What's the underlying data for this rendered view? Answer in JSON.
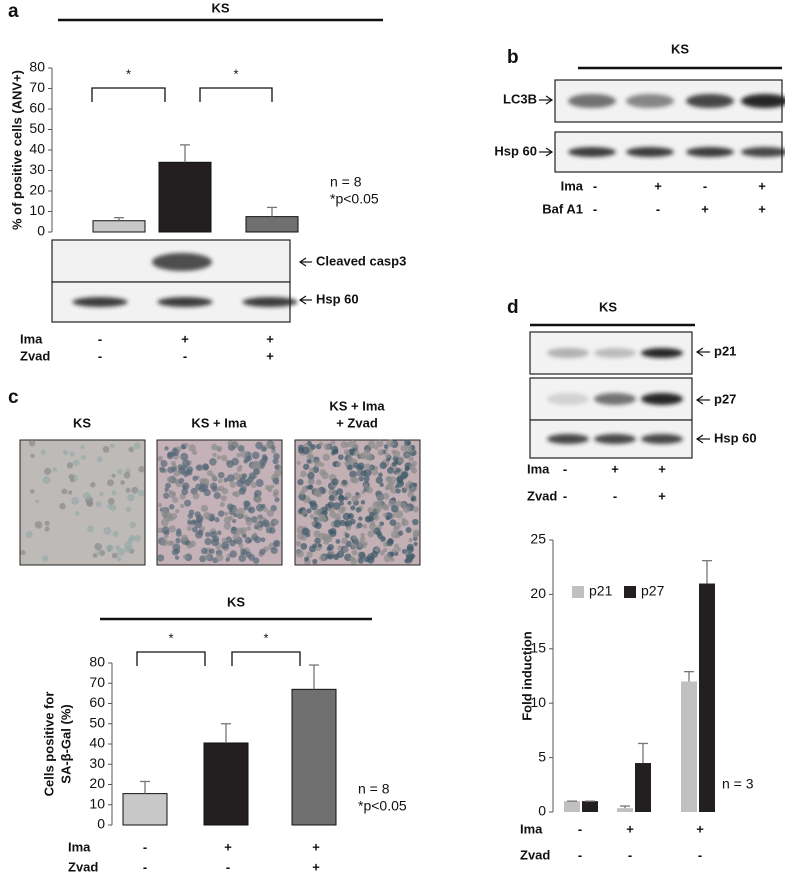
{
  "panel_labels": [
    "a",
    "b",
    "c",
    "d"
  ],
  "chart_data": [
    {
      "type": "bar",
      "title": "KS",
      "ylabel": "% of positive cells (ANV+)",
      "categories": [
        null,
        null,
        null
      ],
      "values": [
        5.5,
        34,
        7.5
      ],
      "errors": [
        1.5,
        8.5,
        4.5
      ],
      "colors": [
        "#c8c8c8",
        "#231f20",
        "#707070"
      ],
      "ylim": [
        0,
        80
      ],
      "yticks": [
        0,
        10,
        20,
        30,
        40,
        50,
        60,
        70,
        80
      ],
      "significance": [
        "*",
        "*"
      ],
      "annotations": [
        "n = 8",
        "*p<0.05"
      ],
      "conditions": [
        {
          "label": "Ima",
          "marks": [
            "-",
            "+",
            "+"
          ]
        },
        {
          "label": "Zvad",
          "marks": [
            "-",
            "-",
            "+"
          ]
        }
      ]
    },
    {
      "type": "bar",
      "title": "KS",
      "ylabel": [
        "Cells positive for",
        "SA-β-Gal (%)"
      ],
      "categories": [
        null,
        null,
        null
      ],
      "values": [
        15.5,
        40.5,
        67
      ],
      "errors": [
        6,
        9.5,
        12
      ],
      "colors": [
        "#c8c8c8",
        "#231f20",
        "#707070"
      ],
      "ylim": [
        0,
        80
      ],
      "yticks": [
        0,
        10,
        20,
        30,
        40,
        50,
        60,
        70,
        80
      ],
      "significance": [
        "*",
        "*"
      ],
      "annotations": [
        "n = 8",
        "*p<0.05"
      ],
      "conditions": [
        {
          "label": "Ima",
          "marks": [
            "-",
            "+",
            "+"
          ]
        },
        {
          "label": "Zvad",
          "marks": [
            "-",
            "-",
            "+"
          ]
        }
      ]
    },
    {
      "type": "grouped_bar",
      "ylabel": "Fold induction",
      "categories": [
        null,
        null,
        null
      ],
      "series": [
        {
          "name": "p21",
          "color": "#c0c0c0",
          "values": [
            1,
            0.35,
            12
          ],
          "errors": [
            0,
            0.2,
            0.9
          ]
        },
        {
          "name": "p27",
          "color": "#231f20",
          "values": [
            1,
            4.5,
            21
          ],
          "errors": [
            0,
            1.8,
            2.1
          ]
        }
      ],
      "ylim": [
        0,
        25
      ],
      "yticks": [
        0,
        5,
        10,
        15,
        20,
        25
      ],
      "annotations": [
        "n = 3"
      ],
      "conditions": [
        {
          "label": "Ima",
          "marks": [
            "-",
            "+",
            "+"
          ]
        },
        {
          "label": "Zvad",
          "marks": [
            "-",
            "-",
            "-"
          ]
        }
      ]
    }
  ],
  "blot_a": {
    "labels": [
      "Cleaved casp3",
      "Hsp 60"
    ]
  },
  "panel_b": {
    "title": "KS",
    "labels": [
      "LC3B",
      "Hsp 60"
    ],
    "conditions": [
      {
        "label": "Ima",
        "marks": [
          "-",
          "+",
          "-",
          "+"
        ]
      },
      {
        "label": "Baf A1",
        "marks": [
          "-",
          "-",
          "+",
          "+"
        ]
      }
    ]
  },
  "panel_c_images": [
    [
      "KS"
    ],
    [
      "KS + Ima"
    ],
    [
      "KS + Ima",
      "+ Zvad"
    ]
  ],
  "panel_d_blot": {
    "title": "KS",
    "labels": [
      "p21",
      "p27",
      "Hsp 60"
    ],
    "conditions": [
      {
        "label": "Ima",
        "marks": [
          "-",
          "+",
          "+"
        ]
      },
      {
        "label": "Zvad",
        "marks": [
          "-",
          "-",
          "+"
        ]
      }
    ]
  }
}
